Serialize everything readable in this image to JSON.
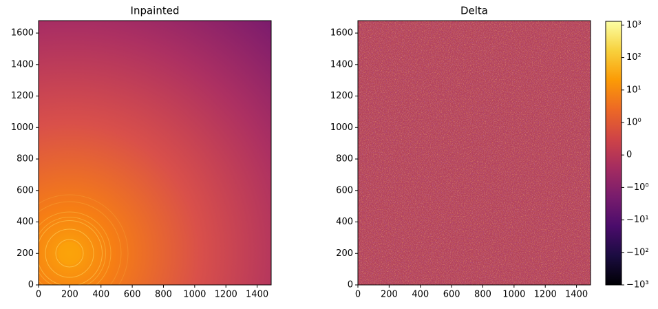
{
  "chart_data": [
    {
      "type": "heatmap",
      "title": "Inpainted",
      "colormap": "inferno",
      "xlim": [
        0,
        1490
      ],
      "ylim": [
        0,
        1679
      ],
      "xticks": [
        0,
        200,
        400,
        600,
        800,
        1000,
        1200,
        1400
      ],
      "yticks": [
        0,
        200,
        400,
        600,
        800,
        1000,
        1200,
        1400,
        1600
      ]
    },
    {
      "type": "heatmap",
      "title": "Delta",
      "colormap": "inferno",
      "xlim": [
        0,
        1490
      ],
      "ylim": [
        0,
        1679
      ],
      "xticks": [
        0,
        200,
        400,
        600,
        800,
        1000,
        1200,
        1400
      ],
      "yticks": [
        0,
        200,
        400,
        600,
        800,
        1000,
        1200,
        1400,
        1600
      ],
      "colorbar": {
        "scale": "symlog",
        "linthresh": 1,
        "lim": [
          -1000,
          1300
        ],
        "ticks": [
          {
            "value": 1000,
            "label": "10³"
          },
          {
            "value": 100,
            "label": "10²"
          },
          {
            "value": 10,
            "label": "10¹"
          },
          {
            "value": 1,
            "label": "10⁰"
          },
          0,
          {
            "value": -1,
            "label": "−10⁰"
          },
          {
            "value": -10,
            "label": "−10¹"
          },
          {
            "value": -100,
            "label": "−10²"
          },
          {
            "value": -1000,
            "label": "−10³"
          }
        ]
      }
    }
  ]
}
